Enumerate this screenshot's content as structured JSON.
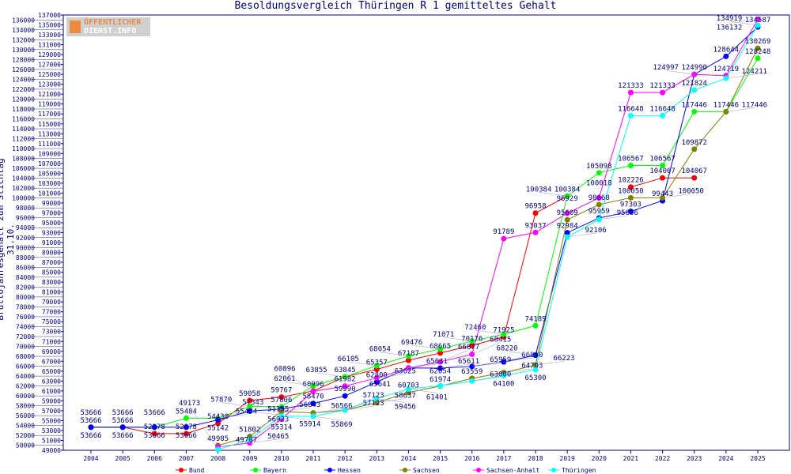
{
  "chart_data": {
    "type": "line",
    "title": "Besoldungsvergleich Thüringen R 1 gemitteltes Gehalt",
    "ylabel": "Bruttojahresgehalt zum Stichtag 31.10.",
    "xlabel": "",
    "ylim": [
      49000,
      137000
    ],
    "ystep": 1000,
    "grid": false,
    "legend": "bottom",
    "x": [
      2004,
      2005,
      2006,
      2007,
      2008,
      2009,
      2010,
      2011,
      2012,
      2013,
      2014,
      2015,
      2016,
      2017,
      2018,
      2019,
      2020,
      2021,
      2022,
      2023,
      2024,
      2025
    ],
    "series": [
      {
        "name": "Bund",
        "color": "#ff0000",
        "values": [
          53666,
          53666,
          52378,
          52378,
          54430,
          59058,
          59767,
          60996,
          63845,
          65357,
          67187,
          68665,
          70176,
          71925,
          96958,
          100384,
          null,
          102226,
          104067,
          104067,
          null,
          null
        ]
      },
      {
        "name": "Bayern",
        "color": "#00ff00",
        "values": [
          53666,
          53666,
          53666,
          55484,
          55484,
          57870,
          57806,
          62061,
          63855,
          66105,
          68054,
          69476,
          71071,
          72460,
          74189,
          100384,
          105098,
          106567,
          106567,
          117446,
          117446,
          128248
        ]
      },
      {
        "name": "Hessen",
        "color": "#0000ff",
        "values": [
          53666,
          53666,
          53666,
          53666,
          55142,
          56923,
          57343,
          58470,
          59990,
          62800,
          65641,
          65611,
          65959,
          66860,
          68220,
          92984,
          95959,
          97303,
          99443,
          124990,
          128644,
          134587
        ]
      },
      {
        "name": "Sachsen",
        "color": "#808000",
        "values": [
          null,
          null,
          null,
          null,
          49985,
          51802,
          56843,
          56566,
          57123,
          58637,
          60703,
          61974,
          63559,
          64703,
          66223,
          95609,
          98668,
          100050,
          100050,
          109872,
          117446,
          130269
        ]
      },
      {
        "name": "Sachsen-Anhalt",
        "color": "#ff00ff",
        "values": [
          null,
          null,
          null,
          null,
          49707,
          50465,
          55314,
          60896,
          61982,
          63625,
          65641,
          66877,
          68415,
          91789,
          93037,
          96929,
          100018,
          121333,
          121333,
          124997,
          124719,
          136132
        ]
      },
      {
        "name": "Thüringen",
        "color": "#00ffff",
        "values": [
          null,
          null,
          null,
          null,
          49173,
          51155,
          55914,
          55869,
          57123,
          59456,
          61401,
          62054,
          63000,
          64100,
          65300,
          92106,
          95656,
          116648,
          116648,
          121824,
          124211,
          134919
        ]
      }
    ]
  },
  "logo": {
    "line1": "ÖFFENTLICHER",
    "line2": "DIENST.INFO"
  }
}
